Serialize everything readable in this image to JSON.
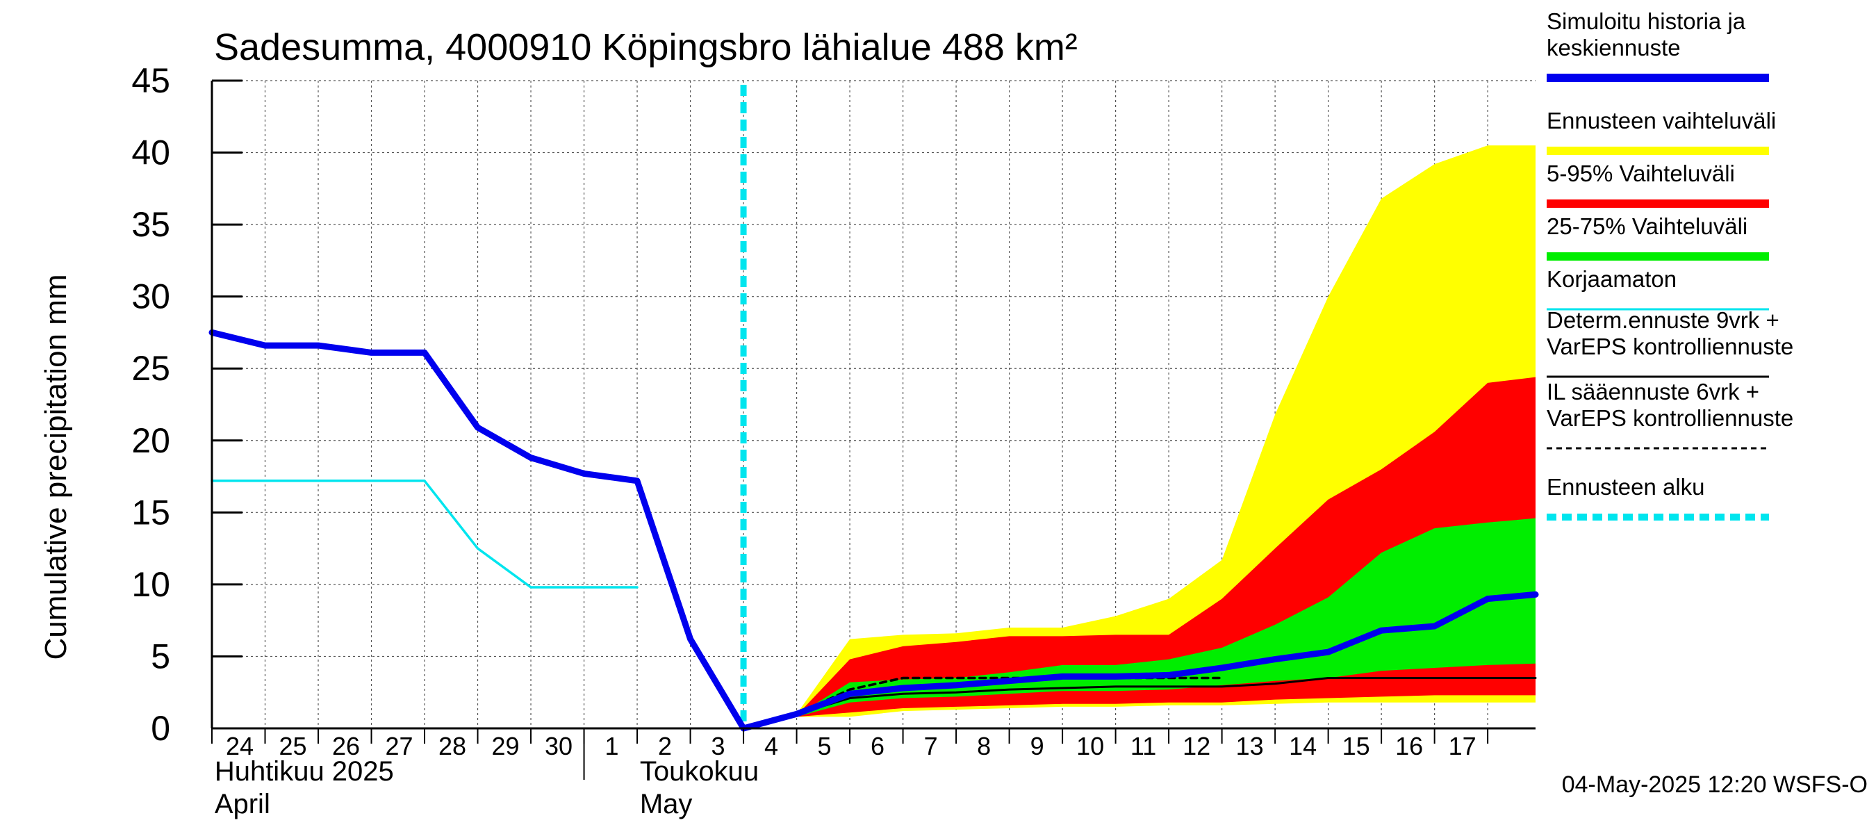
{
  "chart_data": {
    "type": "area",
    "title": "Sadesumma, 4000910 Köpingsbro lähialue 488 km²",
    "ylabel": "Cumulative precipitation   mm",
    "ylim": [
      0,
      45
    ],
    "yticks": [
      "0",
      "5",
      "10",
      "15",
      "20",
      "25",
      "30",
      "35",
      "40",
      "45"
    ],
    "grid": true,
    "legend_position": "right",
    "x_start_day": 24,
    "x_end_day": 17.9,
    "x_day_labels": [
      "24",
      "25",
      "26",
      "27",
      "28",
      "29",
      "30",
      "1",
      "2",
      "3",
      "4",
      "5",
      "6",
      "7",
      "8",
      "9",
      "10",
      "11",
      "12",
      "13",
      "14",
      "15",
      "16",
      "17"
    ],
    "month_labels": [
      {
        "fi": "Huhtikuu  2025",
        "en": "April"
      },
      {
        "fi": "Toukokuu",
        "en": "May"
      }
    ],
    "forecast_start_x": 10.0,
    "series": [
      {
        "name": "Ennusteen vaihteluväli",
        "kind": "band",
        "color": "#ffff00",
        "x": [
          10.0,
          11.0,
          12.0,
          13.0,
          14.0,
          15.0,
          16.0,
          17.0,
          18.0,
          19.0,
          20.0,
          21.0,
          22.0,
          23.0,
          24.0,
          24.9
        ],
        "upper": [
          0.0,
          1.0,
          6.2,
          6.5,
          6.6,
          7.0,
          7.0,
          7.8,
          9.0,
          11.7,
          21.8,
          30.0,
          36.8,
          39.2,
          40.5,
          40.5
        ],
        "lower": [
          0.0,
          0.8,
          0.8,
          1.2,
          1.3,
          1.4,
          1.5,
          1.5,
          1.6,
          1.6,
          1.7,
          1.8,
          1.8,
          1.8,
          1.8,
          1.8
        ]
      },
      {
        "name": "5-95% Vaihteluväli",
        "kind": "band",
        "color": "#ff0000",
        "x": [
          10.0,
          11.0,
          12.0,
          13.0,
          14.0,
          15.0,
          16.0,
          17.0,
          18.0,
          19.0,
          20.0,
          21.0,
          22.0,
          23.0,
          24.0,
          24.9
        ],
        "upper": [
          0.0,
          0.9,
          4.8,
          5.7,
          6.0,
          6.4,
          6.4,
          6.5,
          6.5,
          9.0,
          12.5,
          15.9,
          18.0,
          20.6,
          24.0,
          24.4
        ],
        "lower": [
          0.0,
          0.8,
          1.1,
          1.4,
          1.5,
          1.6,
          1.7,
          1.7,
          1.8,
          1.8,
          2.0,
          2.1,
          2.2,
          2.3,
          2.3,
          2.3
        ]
      },
      {
        "name": "25-75% Vaihteluväli",
        "kind": "band",
        "color": "#00ee00",
        "x": [
          10.0,
          11.0,
          12.0,
          13.0,
          14.0,
          15.0,
          16.0,
          17.0,
          18.0,
          19.0,
          20.0,
          21.0,
          22.0,
          23.0,
          24.0,
          24.9
        ],
        "upper": [
          0.0,
          0.9,
          3.2,
          3.4,
          3.5,
          3.9,
          4.4,
          4.4,
          4.8,
          5.6,
          7.2,
          9.1,
          12.2,
          13.9,
          14.3,
          14.6
        ],
        "lower": [
          0.0,
          0.8,
          1.8,
          2.1,
          2.2,
          2.4,
          2.6,
          2.6,
          2.7,
          3.0,
          3.3,
          3.5,
          4.0,
          4.2,
          4.4,
          4.5
        ]
      },
      {
        "name": "Korjaamaton",
        "kind": "line",
        "color": "#00e5ee",
        "x": [
          0.0,
          1.0,
          2.0,
          3.0,
          4.0,
          5.0,
          6.0,
          7.0,
          8.0
        ],
        "values": [
          17.2,
          17.2,
          17.2,
          17.2,
          17.2,
          12.5,
          9.8,
          9.8,
          9.8
        ]
      },
      {
        "name": "Determ.ennuste 9vrk + VarEPS kontrolliennuste",
        "kind": "line",
        "color": "#000000",
        "x": [
          10.0,
          11.0,
          12.0,
          13.0,
          14.0,
          15.0,
          16.0,
          17.0,
          18.0,
          19.0,
          20.0,
          21.0,
          22.0,
          23.0,
          24.0,
          24.9
        ],
        "values": [
          0.0,
          1.0,
          2.1,
          2.4,
          2.5,
          2.7,
          2.8,
          2.9,
          2.9,
          2.9,
          3.1,
          3.5,
          3.5,
          3.5,
          3.5,
          3.5
        ]
      },
      {
        "name": "IL sääennuste 6vrk  + VarEPS kontrolliennuste",
        "kind": "dashed",
        "color": "#000000",
        "x": [
          10.0,
          11.0,
          12.0,
          13.0,
          14.0,
          15.0,
          16.0,
          17.0,
          18.0,
          19.0
        ],
        "values": [
          0.0,
          1.0,
          2.7,
          3.5,
          3.5,
          3.5,
          3.5,
          3.5,
          3.5,
          3.5
        ]
      },
      {
        "name": "Simuloitu historia ja keskiennuste",
        "kind": "line",
        "color": "#0000ee",
        "x": [
          0.0,
          1.0,
          2.0,
          3.0,
          4.0,
          5.0,
          6.0,
          7.0,
          8.0,
          9.0,
          10.0,
          11.0,
          12.0,
          13.0,
          14.0,
          15.0,
          16.0,
          17.0,
          18.0,
          19.0,
          20.0,
          21.0,
          22.0,
          23.0,
          24.0,
          24.9
        ],
        "values": [
          27.5,
          26.6,
          26.6,
          26.1,
          26.1,
          20.9,
          18.8,
          17.7,
          17.2,
          6.2,
          0.0,
          1.0,
          2.4,
          2.8,
          3.0,
          3.3,
          3.6,
          3.6,
          3.7,
          4.2,
          4.8,
          5.3,
          6.8,
          7.1,
          9.0,
          9.3
        ]
      }
    ],
    "legend": [
      {
        "label": "Simuloitu historia ja keskiennuste",
        "style": "thick",
        "color": "#0000ee"
      },
      {
        "label": "Ennusteen vaihteluväli",
        "style": "thick",
        "color": "#ffff00"
      },
      {
        "label": "5-95% Vaihteluväli",
        "style": "thick",
        "color": "#ff0000"
      },
      {
        "label": "25-75% Vaihteluväli",
        "style": "thick",
        "color": "#00ee00"
      },
      {
        "label": "Korjaamaton",
        "style": "thin",
        "color": "#00e5ee"
      },
      {
        "label": "Determ.ennuste 9vrk + VarEPS kontrolliennuste",
        "style": "thin",
        "color": "#000000"
      },
      {
        "label": "IL sääennuste 6vrk  + VarEPS kontrolliennuste",
        "style": "dashed",
        "color": "#000000"
      },
      {
        "label": "Ennusteen alku",
        "style": "thick-dashed",
        "color": "#00e5ee"
      }
    ],
    "footer": "04-May-2025 12:20 WSFS-O"
  }
}
